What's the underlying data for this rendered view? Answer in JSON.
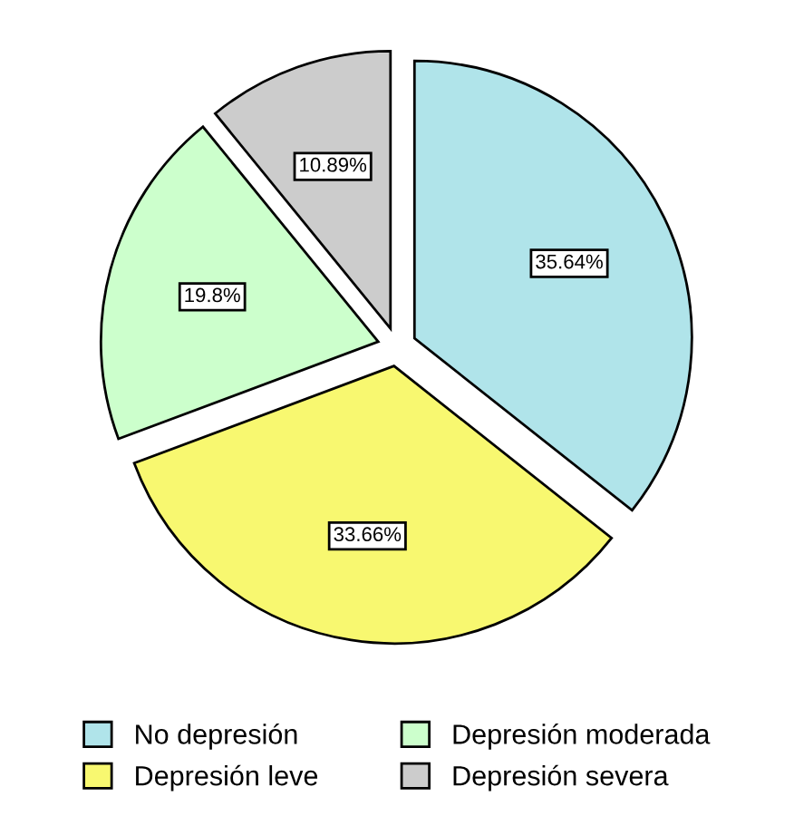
{
  "chart_data": {
    "type": "pie",
    "categories": [
      "No depresión",
      "Depresión leve",
      "Depresión moderada",
      "Depresión severa"
    ],
    "values": [
      35.64,
      33.66,
      19.8,
      10.89
    ],
    "colors": [
      "#b0e4ea",
      "#f8f870",
      "#ccffcc",
      "#cccccc"
    ],
    "value_labels": [
      "35.64%",
      "33.66%",
      "19.8%",
      "10.89%"
    ],
    "legend": "bottom"
  }
}
